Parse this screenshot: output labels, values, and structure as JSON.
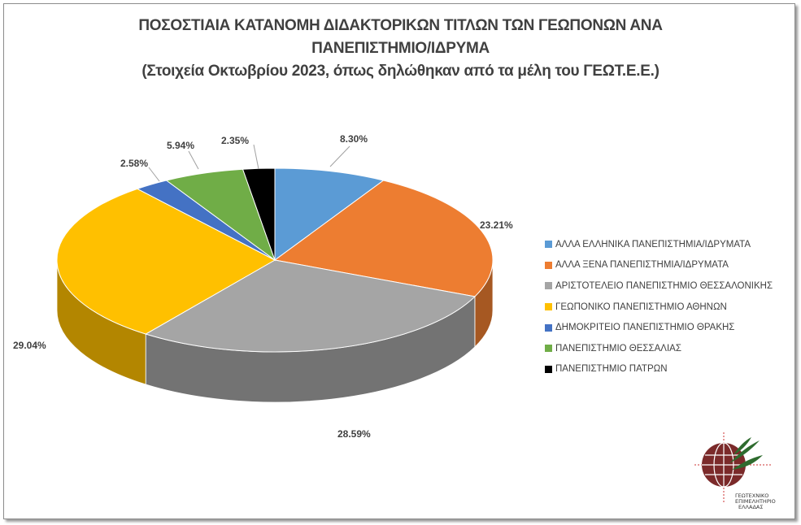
{
  "chart_data": {
    "type": "pie",
    "style": "3d-exploded-perspective",
    "title_lines": [
      "ΠΟΣΟΣΤΙΑΙΑ ΚΑΤΑΝΟΜΗ ΔΙΔΑΚΤΟΡΙΚΩΝ ΤΙΤΛΩΝ ΤΩΝ ΓΕΩΠΟΝΩΝ ΑΝΑ",
      "ΠΑΝΕΠΙΣΤΗΜΙΟ/ΙΔΡΥΜΑ",
      "(Στοιχεία Οκτωβρίου 2023, όπως δηλώθηκαν από τα μέλη του ΓΕΩΤ.Ε.Ε.)"
    ],
    "legend_position": "right",
    "categories": [
      "ΑΛΛΑ ΕΛΛΗΝΙΚΑ ΠΑΝΕΠΙΣΤΗΜΙΑ/ΙΔΡΥΜΑΤΑ",
      "ΑΛΛΑ ΞΕΝΑ ΠΑΝΕΠΙΣΤΗΜΙΑ/ΙΔΡΥΜΑΤΑ",
      "ΑΡΙΣΤΟΤΕΛΕΙΟ ΠΑΝΕΠΙΣΤΗΜΙΟ ΘΕΣΣΑΛΟΝΙΚΗΣ",
      "ΓΕΩΠΟΝΙΚΟ ΠΑΝΕΠΙΣΤΗΜΙΟ ΑΘΗΝΩΝ",
      "ΔΗΜΟΚΡΙΤΕΙΟ ΠΑΝΕΠΙΣΤΗΜΙΟ ΘΡΑΚΗΣ",
      "ΠΑΝΕΠΙΣΤΗΜΙΟ ΘΕΣΣΑΛΙΑΣ",
      "ΠΑΝΕΠΙΣΤΗΜΙΟ ΠΑΤΡΩΝ"
    ],
    "values": [
      8.3,
      23.21,
      28.59,
      29.04,
      2.58,
      5.94,
      2.35
    ],
    "data_labels": [
      "8.30%",
      "23.21%",
      "28.59%",
      "29.04%",
      "2.58%",
      "5.94%",
      "2.35%"
    ],
    "colors": [
      "#5B9BD5",
      "#ED7D31",
      "#A5A5A5",
      "#FFC000",
      "#4472C4",
      "#70AD47",
      "#000000"
    ]
  },
  "logo": {
    "text": "ΓΕΩΤΕΧΝΙΚΟ ΕΠΙΜΕΛΗΤΗΡΙΟ ΕΛΛΑΔΑΣ",
    "colors": [
      "#7b2a2a",
      "#2e6b2e"
    ]
  }
}
